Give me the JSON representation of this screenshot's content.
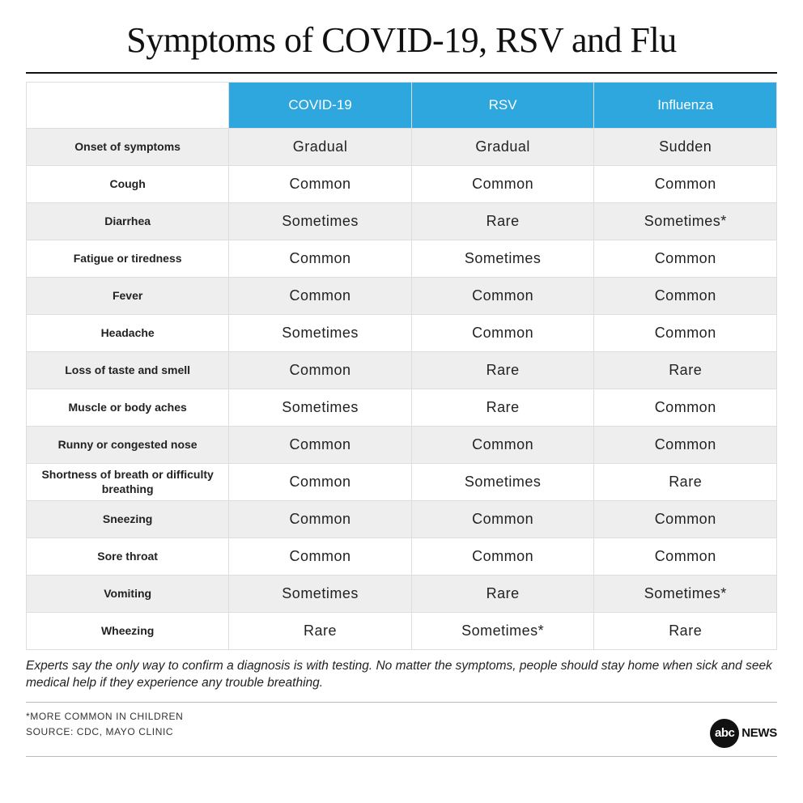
{
  "title": "Symptoms of COVID-19, RSV and Flu",
  "table": {
    "header_bg": "#2ea7df",
    "row_odd_bg": "#eeeeee",
    "row_even_bg": "#ffffff",
    "border_color": "#dddddd",
    "columns": [
      "COVID-19",
      "RSV",
      "Influenza"
    ],
    "symptom_fontsize": 14,
    "value_fontsize": 18,
    "header_fontsize": 17,
    "rows": [
      {
        "symptom": "Onset of symptoms",
        "values": [
          "Gradual",
          "Gradual",
          "Sudden"
        ]
      },
      {
        "symptom": "Cough",
        "values": [
          "Common",
          "Common",
          "Common"
        ]
      },
      {
        "symptom": "Diarrhea",
        "values": [
          "Sometimes",
          "Rare",
          "Sometimes*"
        ]
      },
      {
        "symptom": "Fatigue or tiredness",
        "values": [
          "Common",
          "Sometimes",
          "Common"
        ]
      },
      {
        "symptom": "Fever",
        "values": [
          "Common",
          "Common",
          "Common"
        ]
      },
      {
        "symptom": "Headache",
        "values": [
          "Sometimes",
          "Common",
          "Common"
        ]
      },
      {
        "symptom": "Loss of taste and smell",
        "values": [
          "Common",
          "Rare",
          "Rare"
        ]
      },
      {
        "symptom": "Muscle or body aches",
        "values": [
          "Sometimes",
          "Rare",
          "Common"
        ]
      },
      {
        "symptom": "Runny or congested nose",
        "values": [
          "Common",
          "Common",
          "Common"
        ]
      },
      {
        "symptom": "Shortness of breath or difficulty breathing",
        "values": [
          "Common",
          "Sometimes",
          "Rare"
        ]
      },
      {
        "symptom": "Sneezing",
        "values": [
          "Common",
          "Common",
          "Common"
        ]
      },
      {
        "symptom": "Sore throat",
        "values": [
          "Common",
          "Common",
          "Common"
        ]
      },
      {
        "symptom": "Vomiting",
        "values": [
          "Sometimes",
          "Rare",
          "Sometimes*"
        ]
      },
      {
        "symptom": "Wheezing",
        "values": [
          "Rare",
          "Sometimes*",
          "Rare"
        ]
      }
    ]
  },
  "note": "Experts say the only way to confirm a diagnosis is with testing. No matter the symptoms, people should stay home when sick and seek medical help if they experience any trouble breathing.",
  "asterisk": "*MORE COMMON IN CHILDREN",
  "source": "SOURCE: CDC, MAYO CLINIC",
  "logo": {
    "circle": "abc",
    "text": "NEWS"
  },
  "title_fontsize": 44,
  "colors": {
    "title": "#111111",
    "text": "#222222",
    "footer_text": "#333333",
    "rule": "#bbbbbb",
    "background": "#ffffff"
  }
}
